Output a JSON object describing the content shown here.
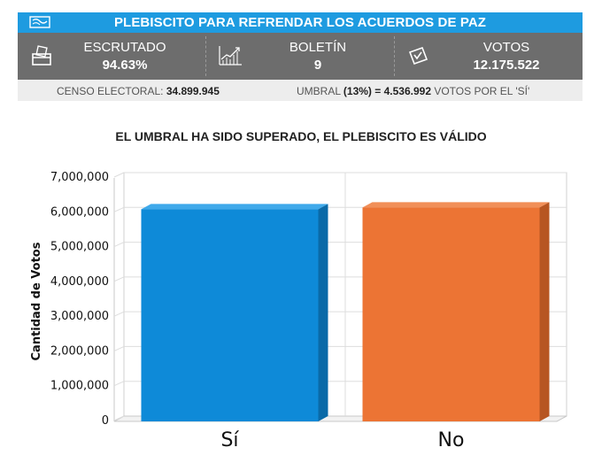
{
  "header": {
    "title": "PLEBISCITO PARA REFRENDAR LOS ACUERDOS DE PAZ"
  },
  "stats": {
    "escrutado": {
      "label": "ESCRUTADO",
      "value": "94.63%"
    },
    "boletin": {
      "label": "BOLETÍN",
      "value": "9"
    },
    "votos": {
      "label": "VOTOS",
      "value": "12.175.522"
    }
  },
  "info": {
    "censo_label": "CENSO ELECTORAL:",
    "censo_value": "34.899.945",
    "umbral_label": "UMBRAL",
    "umbral_value": "(13%) = 4.536.992",
    "umbral_suffix": "VOTOS POR EL 'SÍ'"
  },
  "headline": "EL UMBRAL HA SIDO SUPERADO, EL PLEBISCITO ES VÁLIDO",
  "colors": {
    "banner": "#1e9be0",
    "stats_bg": "#6d6d6d",
    "si_bar": "#0e8ad8",
    "no_bar": "#ec7434"
  },
  "chart_data": {
    "type": "bar",
    "categories": [
      "Sí",
      "No"
    ],
    "values": [
      6100000,
      6150000
    ],
    "ylabel": "Cantidad de Votos",
    "xlabel": "",
    "title": "",
    "ylim": [
      0,
      7000000
    ],
    "yticks": [
      0,
      1000000,
      2000000,
      3000000,
      4000000,
      5000000,
      6000000,
      7000000
    ],
    "ytick_labels": [
      "0",
      "1,000,000",
      "2,000,000",
      "3,000,000",
      "4,000,000",
      "5,000,000",
      "6,000,000",
      "7,000,000"
    ],
    "grid": true,
    "legend": "none",
    "style": "3d"
  }
}
